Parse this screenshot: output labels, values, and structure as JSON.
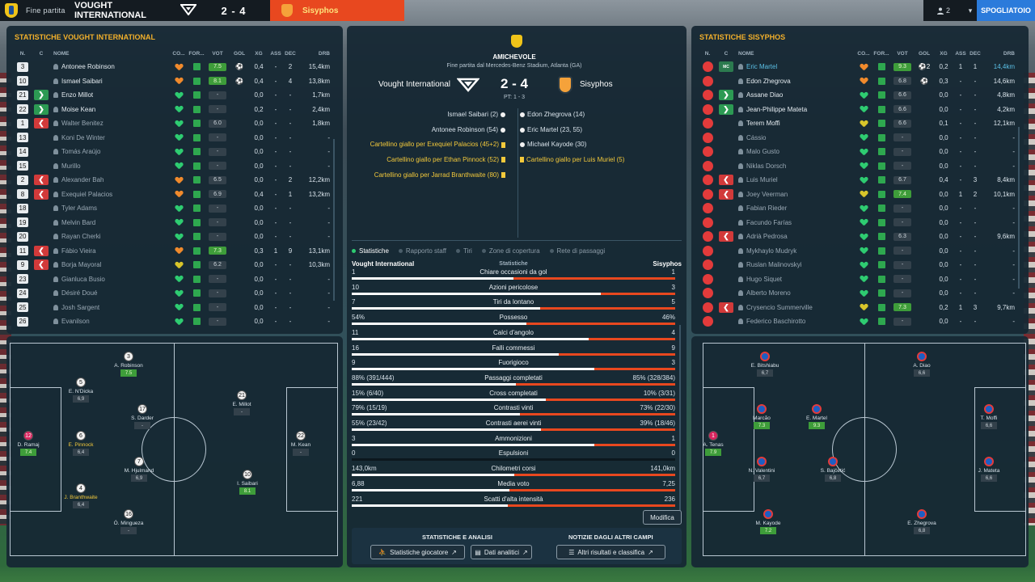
{
  "topbar": {
    "status": "Fine partita",
    "home_team": "VOUGHT INTERNATIONAL",
    "score": "2 - 4",
    "away_team": "Sisyphos",
    "user_count": "2",
    "button": "SPOGLIATOIO"
  },
  "columns": {
    "num": "N.",
    "sub": "C",
    "name": "NOME",
    "co": "CO...",
    "for": "FOR...",
    "vot": "VOT",
    "gol": "GOL",
    "xg": "XG",
    "ass": "ASS",
    "dec": "DEC",
    "drb": "DRB"
  },
  "left": {
    "title": "STATISTICHE VOUGHT INTERNATIONAL",
    "players": [
      {
        "num": "3",
        "sub": "",
        "name": "Antonee Robinson",
        "heart": "orange",
        "vot": "7.5",
        "vg": true,
        "gol": "⚽",
        "xg": "0,4",
        "ass": "-",
        "dec": "2",
        "drb": "15,4km"
      },
      {
        "num": "10",
        "sub": "",
        "name": "Ismael Saibari",
        "heart": "orange",
        "vot": "8.1",
        "vg": true,
        "gol": "⚽",
        "xg": "0,4",
        "ass": "-",
        "dec": "4",
        "drb": "13,8km"
      },
      {
        "num": "21",
        "sub": "in",
        "name": "Enzo Millot",
        "heart": "green",
        "vot": "-",
        "vg": false,
        "gol": "",
        "xg": "0,0",
        "ass": "-",
        "dec": "-",
        "drb": "1,7km"
      },
      {
        "num": "22",
        "sub": "in",
        "name": "Moise Kean",
        "heart": "green",
        "vot": "-",
        "vg": false,
        "gol": "",
        "xg": "0,2",
        "ass": "-",
        "dec": "-",
        "drb": "2,4km"
      },
      {
        "num": "1",
        "sub": "out",
        "name": "Walter Benitez",
        "heart": "green",
        "vot": "6.0",
        "vg": false,
        "gol": "",
        "xg": "0,0",
        "ass": "-",
        "dec": "-",
        "drb": "1,8km",
        "dim": true
      },
      {
        "num": "13",
        "sub": "",
        "name": "Koni De Winter",
        "heart": "green",
        "vot": "-",
        "vg": false,
        "gol": "",
        "xg": "0,0",
        "ass": "-",
        "dec": "-",
        "drb": "-",
        "dim": true
      },
      {
        "num": "14",
        "sub": "",
        "name": "Tomás Araújo",
        "heart": "green",
        "vot": "-",
        "vg": false,
        "gol": "",
        "xg": "0,0",
        "ass": "-",
        "dec": "-",
        "drb": "-",
        "dim": true
      },
      {
        "num": "15",
        "sub": "",
        "name": "Murillo",
        "heart": "green",
        "vot": "-",
        "vg": false,
        "gol": "",
        "xg": "0,0",
        "ass": "-",
        "dec": "-",
        "drb": "-",
        "dim": true
      },
      {
        "num": "2",
        "sub": "out",
        "name": "Alexander Bah",
        "heart": "orange",
        "vot": "6.5",
        "vg": false,
        "gol": "",
        "xg": "0,0",
        "ass": "-",
        "dec": "2",
        "drb": "12,2km",
        "dim": true
      },
      {
        "num": "8",
        "sub": "out",
        "name": "Exequiel Palacios",
        "heart": "orange",
        "vot": "6.9",
        "vg": false,
        "gol": "",
        "xg": "0,4",
        "ass": "-",
        "dec": "1",
        "drb": "13,2km",
        "dim": true
      },
      {
        "num": "18",
        "sub": "",
        "name": "Tyler Adams",
        "heart": "green",
        "vot": "-",
        "vg": false,
        "gol": "",
        "xg": "0,0",
        "ass": "-",
        "dec": "-",
        "drb": "-",
        "dim": true
      },
      {
        "num": "19",
        "sub": "",
        "name": "Melvin Bard",
        "heart": "green",
        "vot": "-",
        "vg": false,
        "gol": "",
        "xg": "0,0",
        "ass": "-",
        "dec": "-",
        "drb": "-",
        "dim": true
      },
      {
        "num": "20",
        "sub": "",
        "name": "Rayan Cherki",
        "heart": "green",
        "vot": "-",
        "vg": false,
        "gol": "",
        "xg": "0,0",
        "ass": "-",
        "dec": "-",
        "drb": "-",
        "dim": true
      },
      {
        "num": "11",
        "sub": "out",
        "name": "Fábio Vieira",
        "heart": "orange",
        "vot": "7.3",
        "vg": true,
        "gol": "",
        "xg": "0,3",
        "ass": "1",
        "dec": "9",
        "drb": "13,1km",
        "dim": true
      },
      {
        "num": "9",
        "sub": "out",
        "name": "Borja Mayoral",
        "heart": "yellow",
        "vot": "6.2",
        "vg": false,
        "gol": "",
        "xg": "0,0",
        "ass": "-",
        "dec": "-",
        "drb": "10,3km",
        "dim": true
      },
      {
        "num": "23",
        "sub": "",
        "name": "Gianluca Busio",
        "heart": "green",
        "vot": "-",
        "vg": false,
        "gol": "",
        "xg": "0,0",
        "ass": "-",
        "dec": "-",
        "drb": "-",
        "dim": true
      },
      {
        "num": "24",
        "sub": "",
        "name": "Désiré Doué",
        "heart": "green",
        "vot": "-",
        "vg": false,
        "gol": "",
        "xg": "0,0",
        "ass": "-",
        "dec": "-",
        "drb": "-",
        "dim": true
      },
      {
        "num": "25",
        "sub": "",
        "name": "Josh Sargent",
        "heart": "green",
        "vot": "-",
        "vg": false,
        "gol": "",
        "xg": "0,0",
        "ass": "-",
        "dec": "-",
        "drb": "-",
        "dim": true
      },
      {
        "num": "26",
        "sub": "",
        "name": "Evanilson",
        "heart": "green",
        "vot": "-",
        "vg": false,
        "gol": "",
        "xg": "0,0",
        "ass": "-",
        "dec": "-",
        "drb": "-",
        "dim": true
      }
    ],
    "pitch": [
      {
        "n": "3",
        "name": "A. Robinson",
        "vote": "7.5",
        "g": true
      },
      {
        "n": "5",
        "name": "E. N'Dicka",
        "vote": "6,9"
      },
      {
        "n": "17",
        "name": "S. Darder",
        "vote": "-"
      },
      {
        "n": "21",
        "name": "E. Millot",
        "vote": "-"
      },
      {
        "n": "12",
        "name": "D. Ramaj",
        "vote": "7.4",
        "g": true,
        "pink": true
      },
      {
        "n": "6",
        "name": "E. Pinnock",
        "vote": "6,4",
        "y": true
      },
      {
        "n": "22",
        "name": "M. Kean",
        "vote": "-"
      },
      {
        "n": "7",
        "name": "M. Hjulmand",
        "vote": "6,9"
      },
      {
        "n": "10",
        "name": "I. Saibari",
        "vote": "8.1",
        "g": true
      },
      {
        "n": "4",
        "name": "J. Branthwaite",
        "vote": "6,4",
        "y": true
      },
      {
        "n": "16",
        "name": "Ó. Mingueza",
        "vote": "-"
      }
    ]
  },
  "right": {
    "title": "STATISTICHE SISYPHOS",
    "players": [
      {
        "sub": "mc",
        "name": "Eric Martel",
        "heart": "orange",
        "vot": "9.3",
        "vg": true,
        "gol": "⚽2",
        "xg": "0,2",
        "ass": "1",
        "dec": "1",
        "drb": "14,4km",
        "hl": true
      },
      {
        "sub": "",
        "name": "Edon Zhegrova",
        "heart": "orange",
        "vot": "6.8",
        "vg": false,
        "gol": "⚽",
        "xg": "0,3",
        "ass": "-",
        "dec": "-",
        "drb": "14,6km"
      },
      {
        "sub": "in",
        "name": "Assane Diao",
        "heart": "green",
        "vot": "6.6",
        "vg": false,
        "gol": "",
        "xg": "0,0",
        "ass": "-",
        "dec": "-",
        "drb": "4,8km"
      },
      {
        "sub": "in",
        "name": "Jean-Philippe Mateta",
        "heart": "green",
        "vot": "6.6",
        "vg": false,
        "gol": "",
        "xg": "0,0",
        "ass": "-",
        "dec": "-",
        "drb": "4,2km"
      },
      {
        "sub": "",
        "name": "Terem Moffi",
        "heart": "yellow",
        "vot": "6.6",
        "vg": false,
        "gol": "",
        "xg": "0,1",
        "ass": "-",
        "dec": "-",
        "drb": "12,1km"
      },
      {
        "sub": "",
        "name": "Cássio",
        "heart": "green",
        "vot": "-",
        "vg": false,
        "gol": "",
        "xg": "0,0",
        "ass": "-",
        "dec": "-",
        "drb": "-",
        "dim": true
      },
      {
        "sub": "",
        "name": "Malo Gusto",
        "heart": "green",
        "vot": "-",
        "vg": false,
        "gol": "",
        "xg": "0,0",
        "ass": "-",
        "dec": "-",
        "drb": "-",
        "dim": true
      },
      {
        "sub": "",
        "name": "Niklas Dorsch",
        "heart": "green",
        "vot": "-",
        "vg": false,
        "gol": "",
        "xg": "0,0",
        "ass": "-",
        "dec": "-",
        "drb": "-",
        "dim": true
      },
      {
        "sub": "out",
        "name": "Luis Muriel",
        "heart": "green",
        "vot": "6.7",
        "vg": false,
        "gol": "",
        "xg": "0,4",
        "ass": "-",
        "dec": "3",
        "drb": "8,4km",
        "dim": true
      },
      {
        "sub": "out",
        "name": "Joey Veerman",
        "heart": "yellow",
        "vot": "7.4",
        "vg": true,
        "gol": "",
        "xg": "0,0",
        "ass": "1",
        "dec": "2",
        "drb": "10,1km",
        "dim": true
      },
      {
        "sub": "",
        "name": "Fabian Rieder",
        "heart": "green",
        "vot": "-",
        "vg": false,
        "gol": "",
        "xg": "0,0",
        "ass": "-",
        "dec": "-",
        "drb": "-",
        "dim": true
      },
      {
        "sub": "",
        "name": "Facundo Farías",
        "heart": "green",
        "vot": "-",
        "vg": false,
        "gol": "",
        "xg": "0,0",
        "ass": "-",
        "dec": "-",
        "drb": "-",
        "dim": true
      },
      {
        "sub": "out",
        "name": "Adrià Pedrosa",
        "heart": "green",
        "vot": "6.3",
        "vg": false,
        "gol": "",
        "xg": "0,0",
        "ass": "-",
        "dec": "-",
        "drb": "9,6km",
        "dim": true
      },
      {
        "sub": "",
        "name": "Mykhaylo Mudryk",
        "heart": "green",
        "vot": "-",
        "vg": false,
        "gol": "",
        "xg": "0,0",
        "ass": "-",
        "dec": "-",
        "drb": "-",
        "dim": true
      },
      {
        "sub": "",
        "name": "Ruslan Malinovskyi",
        "heart": "green",
        "vot": "-",
        "vg": false,
        "gol": "",
        "xg": "0,0",
        "ass": "-",
        "dec": "-",
        "drb": "-",
        "dim": true
      },
      {
        "sub": "",
        "name": "Hugo Siquet",
        "heart": "green",
        "vot": "-",
        "vg": false,
        "gol": "",
        "xg": "0,0",
        "ass": "-",
        "dec": "-",
        "drb": "-",
        "dim": true
      },
      {
        "sub": "",
        "name": "Alberto Moreno",
        "heart": "green",
        "vot": "-",
        "vg": false,
        "gol": "",
        "xg": "0,0",
        "ass": "-",
        "dec": "-",
        "drb": "-",
        "dim": true
      },
      {
        "sub": "out",
        "name": "Crysencio Summerville",
        "heart": "yellow",
        "vot": "7.3",
        "vg": true,
        "gol": "",
        "xg": "0,2",
        "ass": "1",
        "dec": "3",
        "drb": "9,7km",
        "dim": true
      },
      {
        "sub": "",
        "name": "Federico Baschirotto",
        "heart": "green",
        "vot": "-",
        "vg": false,
        "gol": "",
        "xg": "0,0",
        "ass": "-",
        "dec": "-",
        "drb": "-",
        "dim": true
      }
    ],
    "pitch": [
      {
        "name": "E. Bitshiabu",
        "vote": "6,7"
      },
      {
        "name": "A. Diao",
        "vote": "6,6"
      },
      {
        "name": "Marcão",
        "vote": "7.3",
        "g": true
      },
      {
        "name": "E. Martel",
        "vote": "9.3",
        "g": true
      },
      {
        "name": "T. Moffi",
        "vote": "6,6"
      },
      {
        "n": "1",
        "name": "A. Tenas",
        "vote": "7.9",
        "g": true,
        "pink": true
      },
      {
        "name": "N. Valentini",
        "vote": "6,7"
      },
      {
        "name": "S. Bajčetić",
        "vote": "6,8"
      },
      {
        "name": "J. Mateta",
        "vote": "6,6"
      },
      {
        "name": "M. Kayode",
        "vote": "7.2",
        "g": true
      },
      {
        "name": "E. Zhegrova",
        "vote": "6,8"
      }
    ]
  },
  "match": {
    "competition": "AMICHEVOLE",
    "venue": "Fine partita dal Mercedes-Benz Stadium, Atlanta (GA)",
    "home": "Vought International",
    "away": "Sisyphos",
    "score": "2 - 4",
    "halftime": "PT: 1 - 3",
    "events_home": [
      {
        "t": "Ismael Saibari (2)",
        "k": "goal"
      },
      {
        "t": "Antonee Robinson (54)",
        "k": "goal"
      },
      {
        "t": "Cartellino giallo per Exequiel Palacios (45+2)",
        "k": "card"
      },
      {
        "t": "Cartellino giallo per Ethan Pinnock (52)",
        "k": "card"
      },
      {
        "t": "Cartellino giallo per Jarrad Branthwaite (80)",
        "k": "card"
      }
    ],
    "events_away": [
      {
        "t": "Edon Zhegrova (14)",
        "k": "goal"
      },
      {
        "t": "Eric Martel (23, 55)",
        "k": "goal"
      },
      {
        "t": "Michael Kayode (30)",
        "k": "goal"
      },
      {
        "t": "Cartellino giallo per Luis Muriel (5)",
        "k": "card"
      }
    ]
  },
  "tabs": [
    "Statistiche",
    "Rapporto staff",
    "Tiri",
    "Zone di copertura",
    "Rete di passaggi"
  ],
  "stats_header": {
    "home": "Vought International",
    "title": "Statistiche",
    "away": "Sisyphos"
  },
  "stats": [
    {
      "l": "1",
      "label": "Chiare occasioni da gol",
      "r": "1",
      "lv": 1,
      "rv": 1
    },
    {
      "l": "10",
      "label": "Azioni pericolose",
      "r": "3",
      "lv": 10,
      "rv": 3
    },
    {
      "l": "7",
      "label": "Tiri da lontano",
      "r": "5",
      "lv": 7,
      "rv": 5
    },
    {
      "l": "54%",
      "label": "Possesso",
      "r": "46%",
      "lv": 54,
      "rv": 46
    },
    {
      "l": "11",
      "label": "Calci d'angolo",
      "r": "4",
      "lv": 11,
      "rv": 4
    },
    {
      "l": "16",
      "label": "Falli commessi",
      "r": "9",
      "lv": 16,
      "rv": 9
    },
    {
      "l": "9",
      "label": "Fuorigioco",
      "r": "3",
      "lv": 9,
      "rv": 3
    },
    {
      "l": "88% (391/444)",
      "label": "Passaggi completati",
      "r": "85% (328/384)",
      "lv": 88,
      "rv": 85
    },
    {
      "l": "15% (6/40)",
      "label": "Cross completati",
      "r": "10% (3/31)",
      "lv": 15,
      "rv": 10
    },
    {
      "l": "79% (15/19)",
      "label": "Contrasti vinti",
      "r": "73% (22/30)",
      "lv": 79,
      "rv": 73
    },
    {
      "l": "55% (23/42)",
      "label": "Contrasti aerei vinti",
      "r": "39% (18/46)",
      "lv": 55,
      "rv": 39
    },
    {
      "l": "3",
      "label": "Ammonizioni",
      "r": "1",
      "lv": 3,
      "rv": 1
    },
    {
      "l": "0",
      "label": "Espulsioni",
      "r": "0",
      "lv": 0,
      "rv": 0
    },
    {
      "l": "143,0km",
      "label": "Chilometri corsi",
      "r": "141,0km",
      "lv": 143,
      "rv": 141
    },
    {
      "l": "6,88",
      "label": "Media voto",
      "r": "7,25",
      "lv": 6.88,
      "rv": 7.25
    },
    {
      "l": "221",
      "label": "Scatti d'alta intensità",
      "r": "236",
      "lv": 221,
      "rv": 236
    }
  ],
  "modifica": "Modifica",
  "footer": {
    "sect1": "STATISTICHE E ANALISI",
    "sect2": "NOTIZIE DAGLI ALTRI CAMPI",
    "btn1": "Statistiche giocatore",
    "btn2": "Dati analitici",
    "btn3": "Altri risultati e classifica"
  },
  "colors": {
    "accent": "#f3b02b",
    "away": "#e8481f",
    "button": "#2b7bdb"
  }
}
